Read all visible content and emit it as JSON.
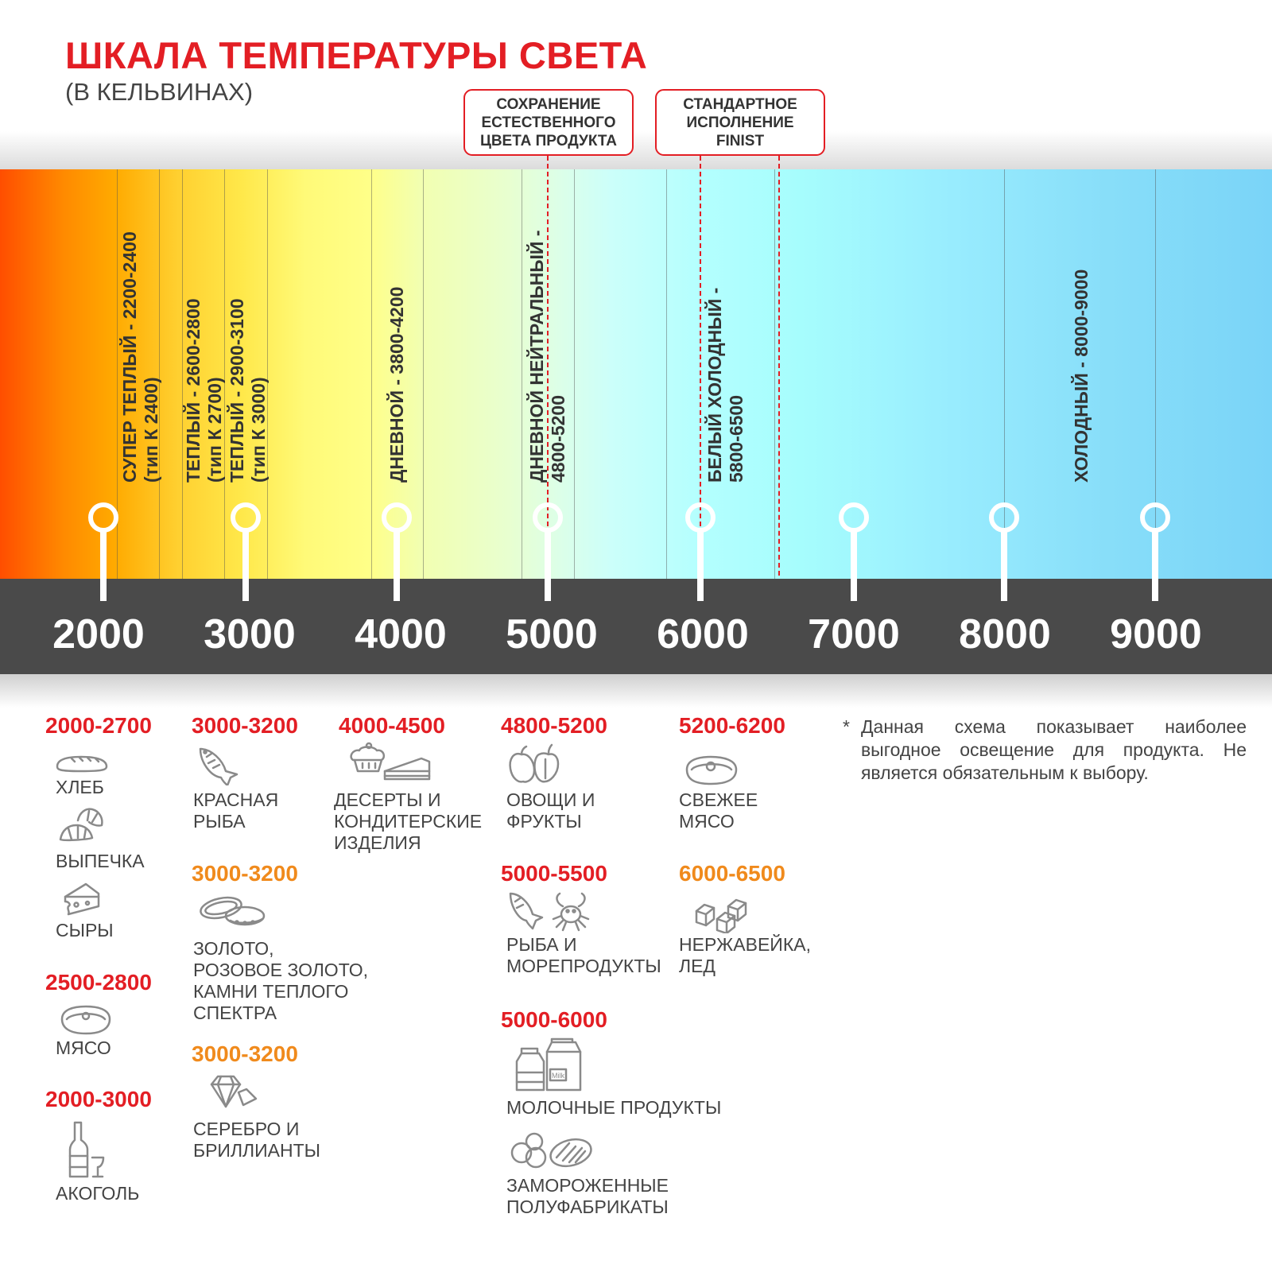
{
  "title": "ШКАЛА ТЕМПЕРАТУРЫ СВЕТА",
  "subtitle": "(В КЕЛЬВИНАХ)",
  "callouts": [
    {
      "text": "СОХРАНЕНИЕ\nЕСТЕСТВЕННОГО\nЦВЕТА ПРОДУКТА"
    },
    {
      "text": "СТАНДАРТНОЕ\nИСПОЛНЕНИЕ\nFINIST"
    }
  ],
  "zones": [
    {
      "text": "СУПЕР ТЕПЛЫЙ - 2200-2400\n(тип К 2400)"
    },
    {
      "text": "ТЕПЛЫЙ - 2600-2800\n(тип К 2700)"
    },
    {
      "text": "ТЕПЛЫЙ - 2900-3100\n(тип К 3000)"
    },
    {
      "text": "ДНЕВНОЙ - 3800-4200"
    },
    {
      "text": "ДНЕВНОЙ НЕЙТРАЛЬНЫЙ -\n4800-5200"
    },
    {
      "text": "БЕЛЫЙ ХОЛОДНЫЙ -\n5800-6500"
    },
    {
      "text": "ХОЛОДНЫЙ - 8000-9000"
    }
  ],
  "scale": [
    "2000",
    "3000",
    "4000",
    "5000",
    "6000",
    "7000",
    "8000",
    "9000"
  ],
  "colors": {
    "accent_red": "#e31e24",
    "accent_orange": "#f08a1c",
    "bar": "#4a4a4a"
  },
  "groups": [
    {
      "range": "2000-2700",
      "items": [
        {
          "label": "ХЛЕБ",
          "icon": "bread-icon"
        },
        {
          "label": "ВЫПЕЧКА",
          "icon": "croissant-icon"
        },
        {
          "label": "СЫРЫ",
          "icon": "cheese-icon"
        }
      ]
    },
    {
      "range": "2500-2800",
      "items": [
        {
          "label": "МЯСО",
          "icon": "steak-icon"
        }
      ]
    },
    {
      "range": "2000-3000",
      "items": [
        {
          "label": "АКОГОЛЬ",
          "icon": "wine-bottle-icon"
        }
      ]
    },
    {
      "range": "3000-3200",
      "items": [
        {
          "label": "КРАСНАЯ\nРЫБА",
          "icon": "fish-icon"
        }
      ]
    },
    {
      "range": "3000-3200",
      "items": [
        {
          "label": "ЗОЛОТО,\nРОЗОВОЕ ЗОЛОТО,\nКАМНИ ТЕПЛОГО\nСПЕКТРА",
          "icon": "rings-icon"
        }
      ]
    },
    {
      "range": "3000-3200",
      "items": [
        {
          "label": "СЕРЕБРО И\nБРИЛЛИАНТЫ",
          "icon": "diamond-icon"
        }
      ]
    },
    {
      "range": "4000-4500",
      "items": [
        {
          "label": "ДЕСЕРТЫ И\nКОНДИТЕРСКИЕ\nИЗДЕЛИЯ",
          "icon": "cake-icon"
        }
      ]
    },
    {
      "range": "4800-5200",
      "items": [
        {
          "label": "ОВОЩИ И\nФРУКТЫ",
          "icon": "apple-pepper-icon"
        }
      ]
    },
    {
      "range": "5000-5500",
      "items": [
        {
          "label": "РЫБА И\nМОРЕПРОДУКТЫ",
          "icon": "fish-crab-icon"
        }
      ]
    },
    {
      "range": "5000-6000",
      "items": [
        {
          "label": "МОЛОЧНЫЕ ПРОДУКТЫ",
          "icon": "milk-icon",
          "icon_text": "Milk"
        },
        {
          "label": "ЗАМОРОЖЕННЫЕ\nПОЛУФАБРИКАТЫ",
          "icon": "frozen-food-icon"
        }
      ]
    },
    {
      "range": "5200-6200",
      "items": [
        {
          "label": "СВЕЖЕЕ\nМЯСО",
          "icon": "steak-icon"
        }
      ]
    },
    {
      "range": "6000-6500",
      "items": [
        {
          "label": "НЕРЖАВЕЙКА,\nЛЕД",
          "icon": "ice-cubes-icon"
        }
      ]
    }
  ],
  "note": {
    "star": "*",
    "text": "Данная схема показывает наиболее выгодное освещение для продукта. Не является обязательным к выбору."
  }
}
